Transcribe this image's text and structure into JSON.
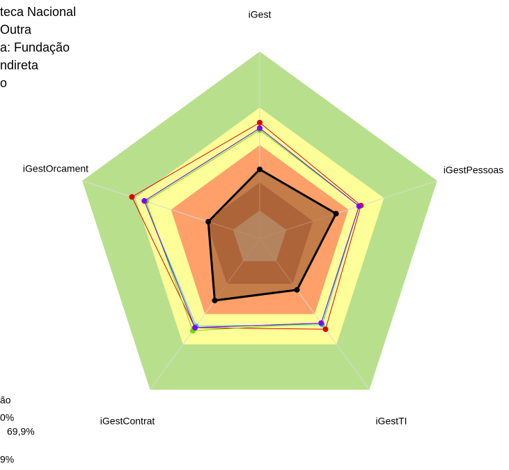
{
  "chart_data": {
    "type": "radar",
    "categories": [
      "iGest",
      "iGestPessoas",
      "iGestTI",
      "iGestContrat",
      "iGestOrcament"
    ],
    "rlim": [
      0,
      100
    ],
    "bands": [
      {
        "value": 100,
        "color": "#b8e08c"
      },
      {
        "value": 70,
        "color": "#ffff99"
      },
      {
        "value": 50,
        "color": "#ffa06a"
      },
      {
        "value": 30,
        "color": "#a9412b"
      },
      {
        "value": 15,
        "color": "#c0c0c0"
      }
    ],
    "series": [
      {
        "color": "#e00000",
        "values": [
          62,
          57,
          60,
          59,
          72
        ]
      },
      {
        "color": "#3a7bd5",
        "values": [
          59,
          56,
          56,
          59,
          65
        ]
      },
      {
        "color": "#33cccc",
        "values": [
          59,
          56,
          57,
          58,
          65
        ]
      },
      {
        "color": "#66dd00",
        "values": [
          58,
          56,
          56,
          61,
          64
        ]
      },
      {
        "color": "#8000ff",
        "values": [
          59,
          56,
          56,
          59,
          65
        ]
      },
      {
        "color": "#000000",
        "values": [
          37,
          43,
          34,
          41,
          29
        ],
        "fill": "#b0703f"
      }
    ]
  },
  "header_lines": [
    "teca Nacional",
    "Outra",
    "a: Fundação",
    "ndireta",
    "o"
  ],
  "footer_lines": [
    "ão",
    "0%",
    "69,9%",
    "9%"
  ]
}
